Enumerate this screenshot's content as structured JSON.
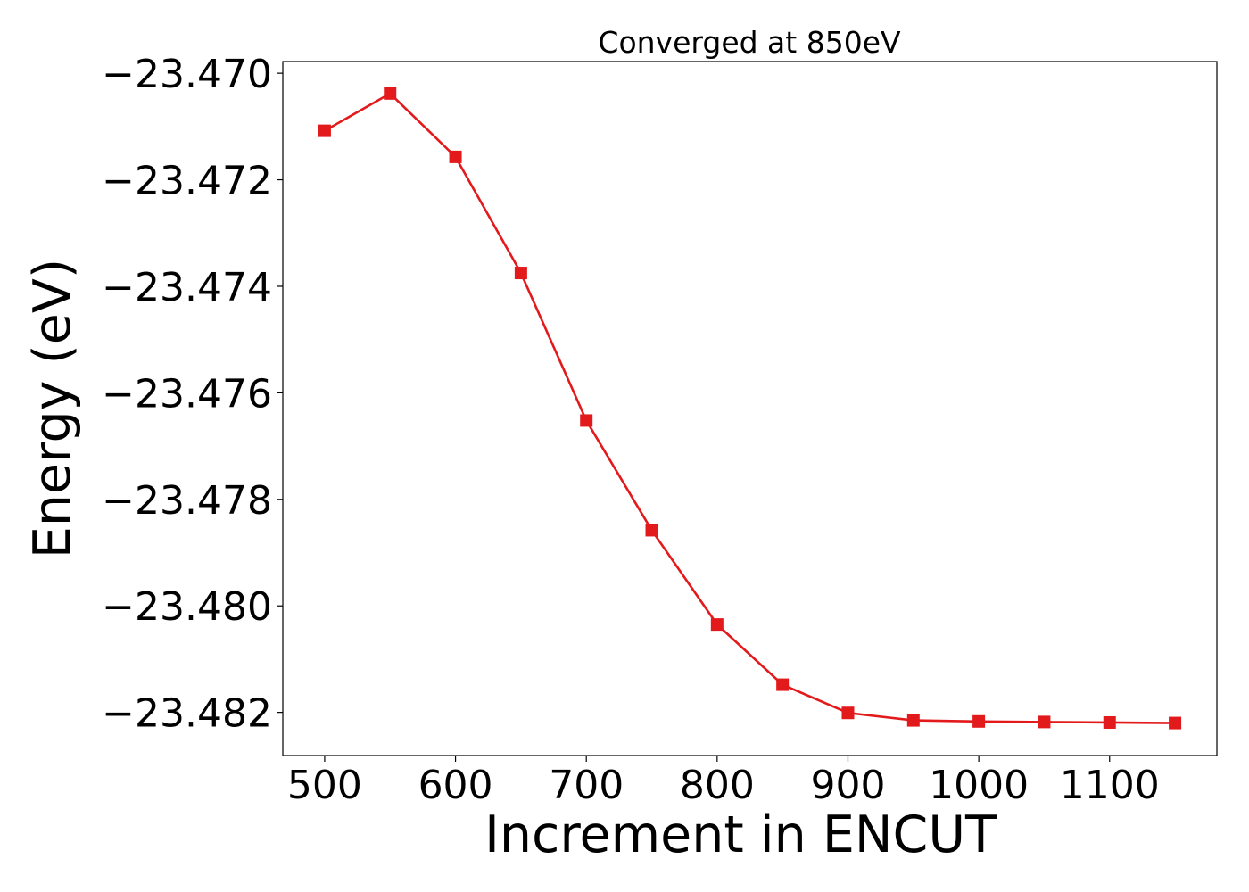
{
  "chart_data": {
    "type": "line",
    "title": "Converged at 850eV",
    "xlabel": "Increment in ENCUT",
    "ylabel": "Energy (eV)",
    "x": [
      500,
      550,
      600,
      650,
      700,
      750,
      800,
      850,
      900,
      950,
      1000,
      1050,
      1100,
      1150
    ],
    "series": [
      {
        "values": [
          -23.47108,
          -23.47038,
          -23.47157,
          -23.47375,
          -23.47652,
          -23.47858,
          -23.48035,
          -23.48148,
          -23.48201,
          -23.48215,
          -23.48217,
          -23.48218,
          -23.48219,
          -23.4822
        ],
        "color": "#e31a1c",
        "marker": "square"
      }
    ],
    "xlim": [
      468,
      1182
    ],
    "ylim": [
      -23.48281,
      -23.46978
    ],
    "xticks": [
      500,
      600,
      700,
      800,
      900,
      1000,
      1100
    ],
    "xtick_labels": [
      "500",
      "600",
      "700",
      "800",
      "900",
      "1000",
      "1100"
    ],
    "yticks": [
      -23.47,
      -23.472,
      -23.474,
      -23.476,
      -23.478,
      -23.48,
      -23.482
    ],
    "ytick_labels": [
      "−23.470",
      "−23.472",
      "−23.474",
      "−23.476",
      "−23.478",
      "−23.480",
      "−23.482"
    ],
    "grid": false,
    "legend": "none"
  }
}
